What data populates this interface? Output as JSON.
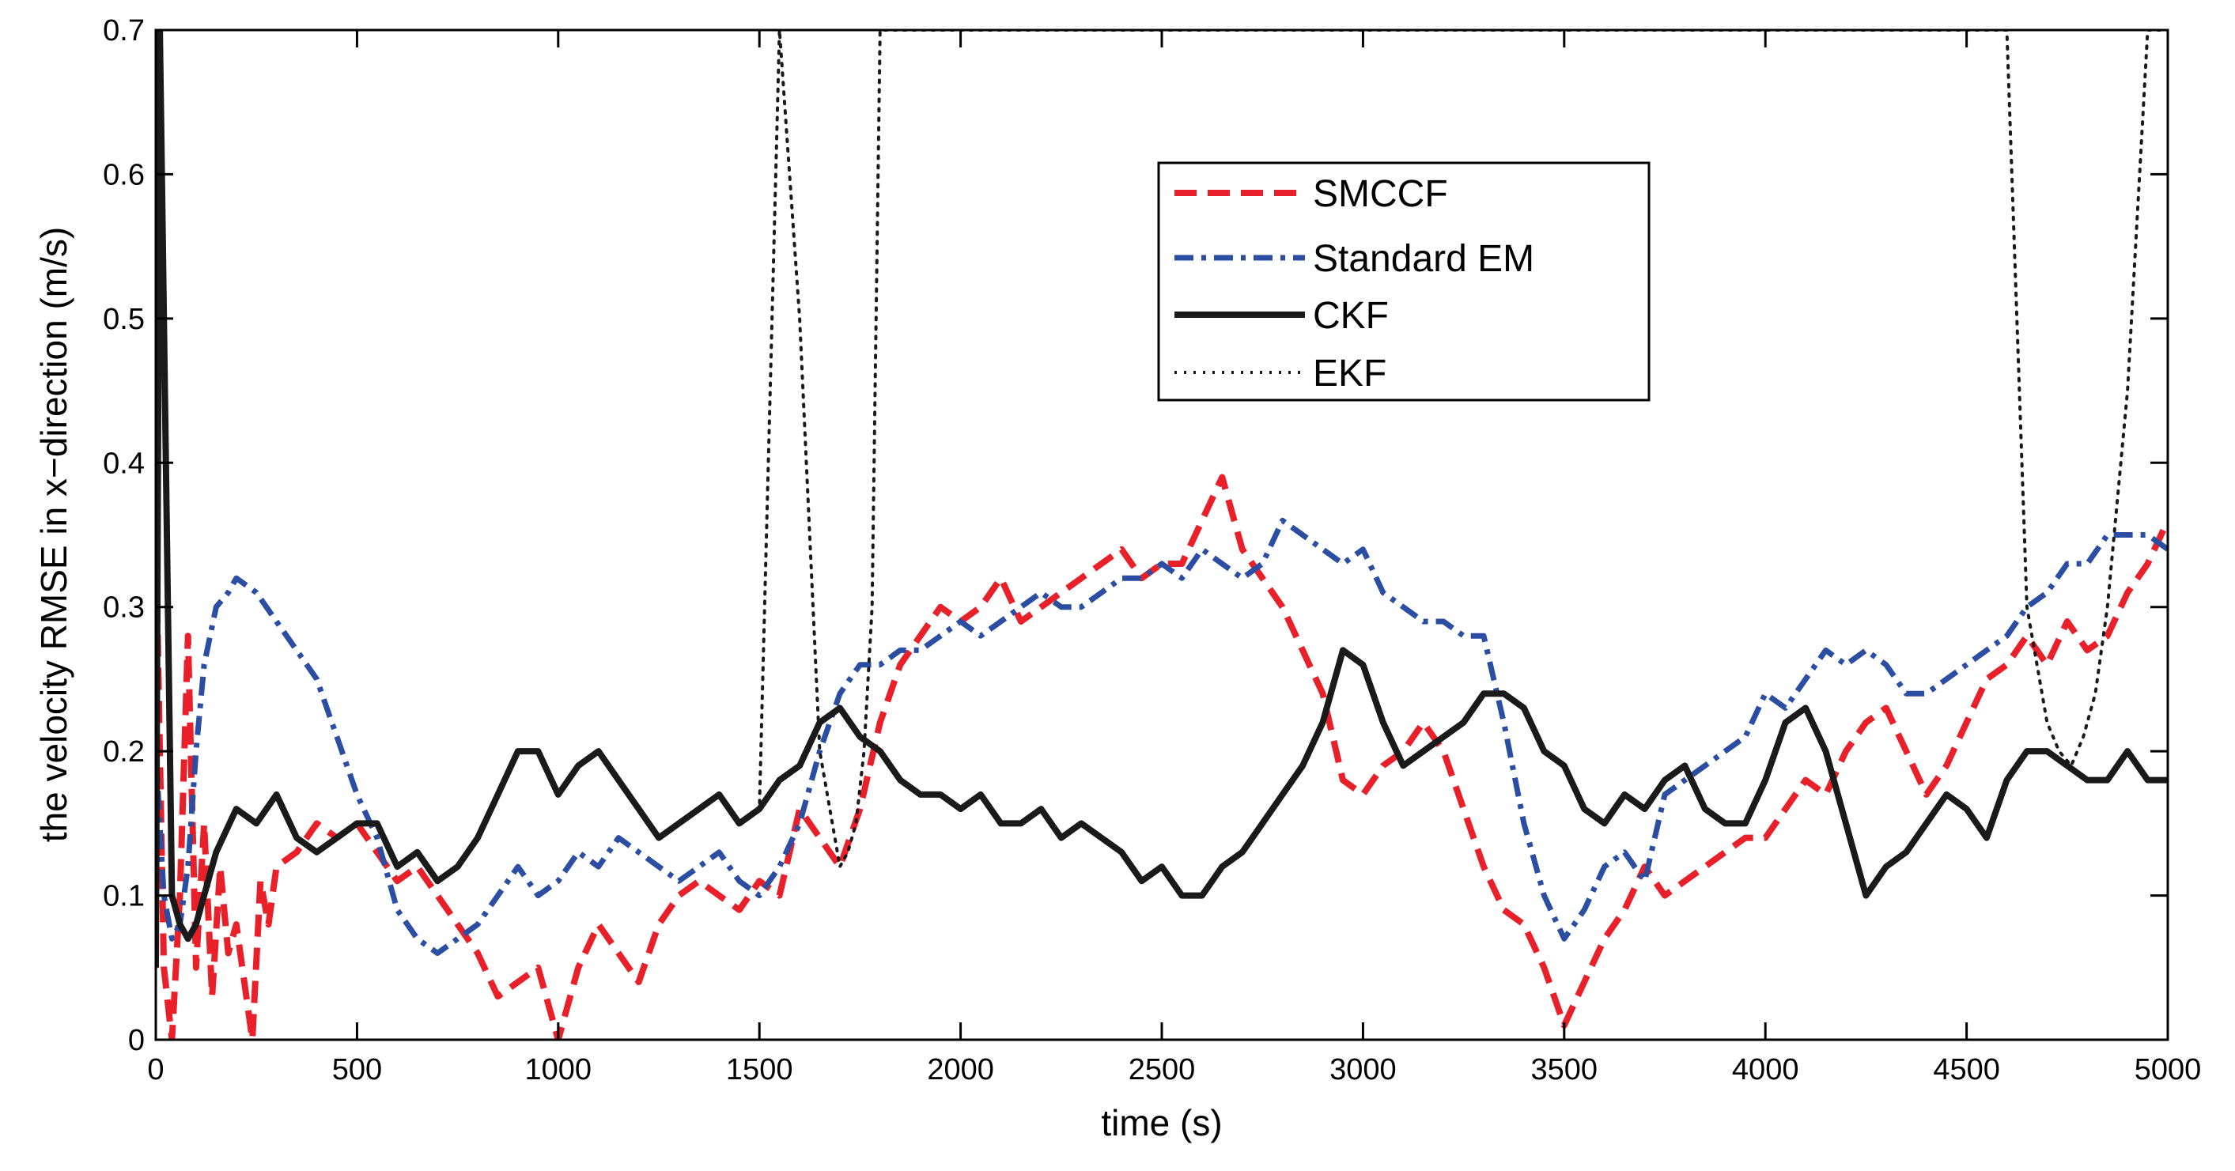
{
  "chart_data": {
    "type": "line",
    "title": "",
    "xlabel": "time (s)",
    "ylabel": "the velocity RMSE in x−direction (m/s)",
    "xlim": [
      0,
      5000
    ],
    "ylim": [
      0,
      0.7
    ],
    "xticks": [
      0,
      500,
      1000,
      1500,
      2000,
      2500,
      3000,
      3500,
      4000,
      4500,
      5000
    ],
    "xtick_labels": [
      "0",
      "500",
      "1000",
      "1500",
      "2000",
      "2500",
      "3000",
      "3500",
      "4000",
      "4500",
      "5000"
    ],
    "yticks": [
      0,
      0.1,
      0.2,
      0.3,
      0.4,
      0.5,
      0.6,
      0.7
    ],
    "ytick_labels": [
      "0",
      "0.1",
      "0.2",
      "0.3",
      "0.4",
      "0.5",
      "0.6",
      "0.7"
    ],
    "grid": false,
    "legend_position": "top-center",
    "series": [
      {
        "name": "SMCCF",
        "color": "#e8202a",
        "style": "dashed",
        "x": [
          0,
          20,
          40,
          60,
          80,
          100,
          120,
          140,
          160,
          180,
          200,
          220,
          240,
          260,
          280,
          300,
          350,
          400,
          450,
          500,
          550,
          600,
          650,
          700,
          750,
          800,
          850,
          900,
          950,
          1000,
          1050,
          1100,
          1150,
          1200,
          1250,
          1300,
          1350,
          1400,
          1450,
          1500,
          1550,
          1600,
          1650,
          1700,
          1750,
          1800,
          1850,
          1900,
          1950,
          2000,
          2050,
          2100,
          2150,
          2200,
          2250,
          2300,
          2350,
          2400,
          2450,
          2500,
          2550,
          2600,
          2650,
          2700,
          2750,
          2800,
          2850,
          2900,
          2950,
          3000,
          3050,
          3100,
          3150,
          3200,
          3250,
          3300,
          3350,
          3400,
          3450,
          3500,
          3550,
          3600,
          3650,
          3700,
          3750,
          3800,
          3850,
          3900,
          3950,
          4000,
          4050,
          4100,
          4150,
          4200,
          4250,
          4300,
          4350,
          4400,
          4450,
          4500,
          4550,
          4600,
          4650,
          4700,
          4750,
          4800,
          4850,
          4900,
          4950,
          5000
        ],
        "y": [
          0.35,
          0.05,
          0.0,
          0.1,
          0.28,
          0.05,
          0.15,
          0.03,
          0.12,
          0.06,
          0.08,
          0.04,
          0.0,
          0.11,
          0.08,
          0.12,
          0.13,
          0.15,
          0.14,
          0.15,
          0.13,
          0.11,
          0.12,
          0.1,
          0.08,
          0.06,
          0.03,
          0.04,
          0.05,
          0.0,
          0.05,
          0.08,
          0.06,
          0.04,
          0.08,
          0.1,
          0.11,
          0.1,
          0.09,
          0.11,
          0.1,
          0.16,
          0.14,
          0.12,
          0.16,
          0.22,
          0.26,
          0.28,
          0.3,
          0.29,
          0.3,
          0.32,
          0.29,
          0.3,
          0.31,
          0.32,
          0.33,
          0.34,
          0.32,
          0.33,
          0.33,
          0.36,
          0.39,
          0.34,
          0.32,
          0.3,
          0.27,
          0.24,
          0.18,
          0.17,
          0.19,
          0.2,
          0.22,
          0.2,
          0.16,
          0.12,
          0.09,
          0.08,
          0.05,
          0.01,
          0.04,
          0.07,
          0.09,
          0.12,
          0.1,
          0.11,
          0.12,
          0.13,
          0.14,
          0.14,
          0.16,
          0.18,
          0.17,
          0.2,
          0.22,
          0.23,
          0.2,
          0.17,
          0.19,
          0.22,
          0.25,
          0.26,
          0.28,
          0.26,
          0.29,
          0.27,
          0.28,
          0.31,
          0.33,
          0.36
        ]
      },
      {
        "name": "Standard EM",
        "color": "#2b4ea2",
        "style": "dashdot",
        "x": [
          0,
          20,
          40,
          60,
          80,
          100,
          120,
          150,
          180,
          200,
          250,
          300,
          350,
          400,
          450,
          500,
          550,
          600,
          650,
          700,
          750,
          800,
          850,
          900,
          950,
          1000,
          1050,
          1100,
          1150,
          1200,
          1250,
          1300,
          1350,
          1400,
          1450,
          1500,
          1550,
          1600,
          1650,
          1700,
          1750,
          1800,
          1850,
          1900,
          1950,
          2000,
          2050,
          2100,
          2150,
          2200,
          2250,
          2300,
          2350,
          2400,
          2450,
          2500,
          2550,
          2600,
          2650,
          2700,
          2750,
          2800,
          2850,
          2900,
          2950,
          3000,
          3050,
          3100,
          3150,
          3200,
          3250,
          3300,
          3350,
          3400,
          3450,
          3500,
          3550,
          3600,
          3650,
          3700,
          3750,
          3800,
          3850,
          3900,
          3950,
          4000,
          4050,
          4100,
          4150,
          4200,
          4250,
          4300,
          4350,
          4400,
          4450,
          4500,
          4550,
          4600,
          4650,
          4700,
          4750,
          4800,
          4850,
          4900,
          4950,
          5000
        ],
        "y": [
          0.2,
          0.1,
          0.07,
          0.08,
          0.12,
          0.2,
          0.26,
          0.3,
          0.31,
          0.32,
          0.31,
          0.29,
          0.27,
          0.25,
          0.21,
          0.17,
          0.14,
          0.09,
          0.07,
          0.06,
          0.07,
          0.08,
          0.1,
          0.12,
          0.1,
          0.11,
          0.13,
          0.12,
          0.14,
          0.13,
          0.12,
          0.11,
          0.12,
          0.13,
          0.11,
          0.1,
          0.12,
          0.15,
          0.2,
          0.24,
          0.26,
          0.26,
          0.27,
          0.27,
          0.28,
          0.29,
          0.28,
          0.29,
          0.3,
          0.31,
          0.3,
          0.3,
          0.31,
          0.32,
          0.32,
          0.33,
          0.32,
          0.34,
          0.33,
          0.32,
          0.33,
          0.36,
          0.35,
          0.34,
          0.33,
          0.34,
          0.31,
          0.3,
          0.29,
          0.29,
          0.28,
          0.28,
          0.22,
          0.15,
          0.1,
          0.07,
          0.09,
          0.12,
          0.13,
          0.11,
          0.17,
          0.18,
          0.19,
          0.2,
          0.21,
          0.24,
          0.23,
          0.25,
          0.27,
          0.26,
          0.27,
          0.26,
          0.24,
          0.24,
          0.25,
          0.26,
          0.27,
          0.28,
          0.3,
          0.31,
          0.33,
          0.33,
          0.35,
          0.35,
          0.35,
          0.34
        ]
      },
      {
        "name": "CKF",
        "color": "#1a1a1a",
        "style": "solid",
        "x": [
          0,
          10,
          20,
          40,
          60,
          80,
          100,
          150,
          200,
          250,
          300,
          350,
          400,
          450,
          500,
          550,
          600,
          650,
          700,
          750,
          800,
          850,
          900,
          950,
          1000,
          1050,
          1100,
          1150,
          1200,
          1250,
          1300,
          1350,
          1400,
          1450,
          1500,
          1550,
          1600,
          1650,
          1700,
          1750,
          1800,
          1850,
          1900,
          1950,
          2000,
          2050,
          2100,
          2150,
          2200,
          2250,
          2300,
          2350,
          2400,
          2450,
          2500,
          2550,
          2600,
          2650,
          2700,
          2750,
          2800,
          2850,
          2900,
          2950,
          3000,
          3050,
          3100,
          3150,
          3200,
          3250,
          3300,
          3350,
          3400,
          3450,
          3500,
          3550,
          3600,
          3650,
          3700,
          3750,
          3800,
          3850,
          3900,
          3950,
          4000,
          4050,
          4100,
          4150,
          4200,
          4250,
          4300,
          4350,
          4400,
          4450,
          4500,
          4550,
          4600,
          4650,
          4700,
          4750,
          4800,
          4850,
          4900,
          4950,
          5000
        ],
        "y": [
          0.05,
          0.7,
          0.5,
          0.1,
          0.08,
          0.07,
          0.08,
          0.13,
          0.16,
          0.15,
          0.17,
          0.14,
          0.13,
          0.14,
          0.15,
          0.15,
          0.12,
          0.13,
          0.11,
          0.12,
          0.14,
          0.17,
          0.2,
          0.2,
          0.17,
          0.19,
          0.2,
          0.18,
          0.16,
          0.14,
          0.15,
          0.16,
          0.17,
          0.15,
          0.16,
          0.18,
          0.19,
          0.22,
          0.23,
          0.21,
          0.2,
          0.18,
          0.17,
          0.17,
          0.16,
          0.17,
          0.15,
          0.15,
          0.16,
          0.14,
          0.15,
          0.14,
          0.13,
          0.11,
          0.12,
          0.1,
          0.1,
          0.12,
          0.13,
          0.15,
          0.17,
          0.19,
          0.22,
          0.27,
          0.26,
          0.22,
          0.19,
          0.2,
          0.21,
          0.22,
          0.24,
          0.24,
          0.23,
          0.2,
          0.19,
          0.16,
          0.15,
          0.17,
          0.16,
          0.18,
          0.19,
          0.16,
          0.15,
          0.15,
          0.18,
          0.22,
          0.23,
          0.2,
          0.15,
          0.1,
          0.12,
          0.13,
          0.15,
          0.17,
          0.16,
          0.14,
          0.18,
          0.2,
          0.2,
          0.19,
          0.18,
          0.18,
          0.2,
          0.18,
          0.18
        ]
      },
      {
        "name": "EKF",
        "color": "#1a1a1a",
        "style": "dotted",
        "x": [
          0,
          10,
          20,
          40,
          60,
          80,
          100,
          150,
          200,
          250,
          300,
          350,
          400,
          450,
          500,
          550,
          600,
          650,
          700,
          750,
          800,
          850,
          900,
          950,
          1000,
          1050,
          1100,
          1150,
          1200,
          1250,
          1300,
          1350,
          1400,
          1450,
          1500,
          1550,
          1600,
          1650,
          1700,
          1720,
          1740,
          1760,
          1780,
          1800,
          1850,
          1900,
          1950,
          2000,
          2100,
          2200,
          2300,
          2400,
          2500,
          2600,
          2700,
          2800,
          2900,
          3000,
          3100,
          3200,
          3300,
          3400,
          3500,
          3600,
          3700,
          3800,
          3900,
          4000,
          4100,
          4200,
          4300,
          4400,
          4500,
          4600,
          4650,
          4700,
          4730,
          4760,
          4790,
          4820,
          4850,
          4900,
          4950,
          5000
        ],
        "y": [
          0.05,
          0.7,
          0.5,
          0.1,
          0.08,
          0.07,
          0.08,
          0.13,
          0.16,
          0.15,
          0.17,
          0.14,
          0.13,
          0.14,
          0.15,
          0.15,
          0.12,
          0.13,
          0.11,
          0.12,
          0.14,
          0.17,
          0.2,
          0.2,
          0.17,
          0.19,
          0.2,
          0.18,
          0.16,
          0.14,
          0.15,
          0.16,
          0.17,
          0.15,
          0.16,
          0.7,
          0.5,
          0.2,
          0.12,
          0.13,
          0.15,
          0.2,
          0.3,
          0.7,
          0.7,
          0.7,
          0.7,
          0.7,
          0.7,
          0.7,
          0.7,
          0.7,
          0.7,
          0.7,
          0.7,
          0.7,
          0.7,
          0.7,
          0.7,
          0.7,
          0.7,
          0.7,
          0.7,
          0.7,
          0.7,
          0.7,
          0.7,
          0.7,
          0.7,
          0.7,
          0.7,
          0.7,
          0.7,
          0.7,
          0.3,
          0.22,
          0.2,
          0.19,
          0.21,
          0.24,
          0.3,
          0.45,
          0.7,
          0.7
        ]
      }
    ]
  }
}
